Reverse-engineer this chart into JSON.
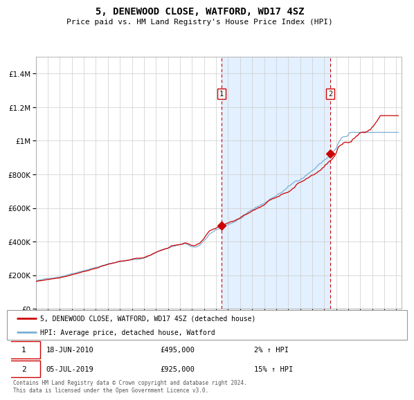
{
  "title": "5, DENEWOOD CLOSE, WATFORD, WD17 4SZ",
  "subtitle": "Price paid vs. HM Land Registry's House Price Index (HPI)",
  "legend_line1": "5, DENEWOOD CLOSE, WATFORD, WD17 4SZ (detached house)",
  "legend_line2": "HPI: Average price, detached house, Watford",
  "transaction1_date": "18-JUN-2010",
  "transaction1_price": 495000,
  "transaction1_label": "2% ↑ HPI",
  "transaction2_date": "05-JUL-2019",
  "transaction2_price": 925000,
  "transaction2_label": "15% ↑ HPI",
  "footer": "Contains HM Land Registry data © Crown copyright and database right 2024.\nThis data is licensed under the Open Government Licence v3.0.",
  "red_color": "#cc0000",
  "blue_color": "#7aafd4",
  "bg_highlight": "#ddeeff",
  "ylim_max": 1500000,
  "start_year": 1995,
  "end_year": 2025
}
